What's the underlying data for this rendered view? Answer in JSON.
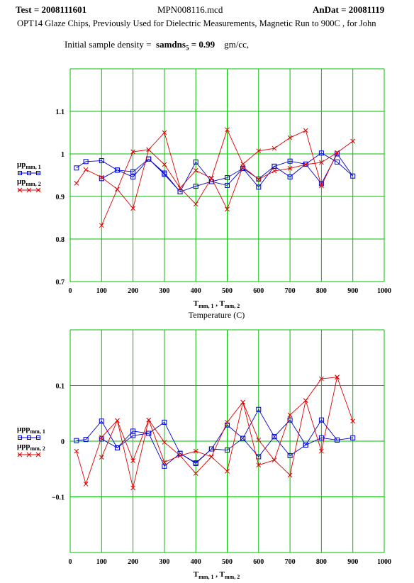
{
  "header": {
    "test": "Test = 2008111601",
    "file": "MPN008116.mcd",
    "andat": "AnDat = 20081119",
    "description": "OPT14 Glaze Chips, Previously Used for Dielectric Measurements, Magnetic Run to 900C , for John",
    "density_label": "Initial sample density =",
    "density_var": "samdns",
    "density_sub": "5",
    "density_value": "= 0.99",
    "density_unit": "gm/cc,"
  },
  "colors": {
    "grid": "#00c000",
    "series1": "#0000cc",
    "series2": "#dd0000"
  },
  "chart_data": [
    {
      "type": "line",
      "xlim": [
        0,
        1000
      ],
      "ylim": [
        0.7,
        1.2
      ],
      "xticks": [
        0,
        100,
        200,
        300,
        400,
        500,
        600,
        700,
        800,
        900,
        1000
      ],
      "yticks": [
        0.7,
        0.8,
        0.9,
        1,
        1.1
      ],
      "ytick_labels": [
        "0.7",
        "0.8",
        "0.9",
        "1",
        "1.1"
      ],
      "grid": true,
      "xlabel": "T",
      "xlabel_sub": "mm, 1",
      "xlabel_mid": " , T",
      "xlabel_sub2": "mm, 2",
      "xtitle": "Temperature (C)",
      "series": [
        {
          "name": "μp",
          "name_sub": "mm, 1",
          "marker": "square",
          "x": [
            20,
            50,
            100,
            150,
            200,
            250,
            300,
            350,
            400,
            450,
            500,
            550,
            600,
            650,
            700,
            750,
            800,
            850,
            900,
            850,
            800,
            750,
            700,
            650,
            600,
            550,
            500,
            450,
            400,
            350,
            300,
            250,
            200,
            150,
            100
          ],
          "y": [
            0.967,
            0.982,
            0.984,
            0.962,
            0.958,
            0.988,
            0.952,
            0.911,
            0.981,
            0.935,
            0.944,
            0.966,
            0.922,
            0.971,
            0.946,
            0.976,
            1.002,
            0.981,
            0.948,
            1.0,
            0.93,
            0.976,
            0.983,
            0.971,
            0.941,
            0.966,
            0.926,
            0.935,
            0.924,
            0.911,
            0.955,
            0.988,
            0.946,
            0.962,
            0.942
          ]
        },
        {
          "name": "μp",
          "name_sub": "mm, 2",
          "marker": "x",
          "x": [
            20,
            50,
            100,
            150,
            200,
            250,
            300,
            350,
            400,
            450,
            500,
            550,
            600,
            650,
            700,
            750,
            800,
            850,
            900,
            850,
            800,
            750,
            700,
            650,
            600,
            550,
            500,
            450,
            400,
            350,
            300,
            250,
            200,
            150,
            100
          ],
          "y": [
            0.931,
            0.963,
            0.945,
            0.917,
            1.005,
            1.01,
            0.975,
            0.92,
            0.961,
            0.943,
            1.057,
            0.976,
            1.007,
            1.013,
            1.038,
            1.055,
            0.925,
            1.003,
            1.03,
            1.003,
            0.98,
            0.975,
            0.966,
            0.96,
            0.94,
            0.97,
            0.87,
            0.943,
            0.882,
            0.92,
            1.05,
            1.01,
            0.872,
            0.917,
            0.832
          ]
        }
      ]
    },
    {
      "type": "line",
      "xlim": [
        0,
        1000
      ],
      "ylim": [
        -0.2,
        0.2
      ],
      "xticks": [
        0,
        100,
        200,
        300,
        400,
        500,
        600,
        700,
        800,
        900,
        1000
      ],
      "yticks": [
        -0.2,
        -0.1,
        0,
        0.1,
        0.2
      ],
      "ytick_labels": [
        "",
        "−0.1",
        "0",
        "0.1",
        ""
      ],
      "grid": true,
      "xlabel": "T",
      "xlabel_sub": "mm, 1",
      "xlabel_mid": " , T",
      "xlabel_sub2": "mm, 2",
      "xtitle": "",
      "series": [
        {
          "name": "μpp",
          "name_sub": "mm, 1",
          "marker": "square",
          "x": [
            20,
            50,
            100,
            150,
            200,
            250,
            300,
            350,
            400,
            450,
            500,
            550,
            600,
            650,
            700,
            750,
            800,
            850,
            900,
            850,
            800,
            750,
            700,
            650,
            600,
            550,
            500,
            450,
            400,
            350,
            300,
            250,
            200,
            150,
            100
          ],
          "y": [
            0.001,
            0.003,
            0.036,
            -0.012,
            0.01,
            0.014,
            0.034,
            -0.022,
            -0.04,
            -0.014,
            0.029,
            0.005,
            0.057,
            0.008,
            0.038,
            -0.007,
            0.038,
            0.002,
            0.006,
            0.002,
            0.006,
            -0.007,
            -0.026,
            0.008,
            -0.028,
            0.005,
            -0.016,
            -0.014,
            -0.039,
            -0.022,
            -0.045,
            0.014,
            0.018,
            -0.012,
            0.004
          ]
        },
        {
          "name": "μpp",
          "name_sub": "mm, 2",
          "marker": "x",
          "x": [
            20,
            50,
            100,
            150,
            200,
            250,
            300,
            350,
            400,
            450,
            500,
            550,
            600,
            650,
            700,
            750,
            800,
            850,
            900,
            850,
            800,
            750,
            700,
            650,
            600,
            550,
            500,
            450,
            400,
            350,
            300,
            250,
            200,
            150,
            100
          ],
          "y": [
            -0.018,
            -0.077,
            0.007,
            0.037,
            -0.084,
            0.038,
            -0.002,
            -0.026,
            -0.058,
            -0.028,
            0.034,
            0.07,
            0.002,
            -0.034,
            0.047,
            0.073,
            -0.018,
            0.115,
            0.036,
            0.115,
            0.112,
            0.073,
            -0.061,
            -0.034,
            -0.043,
            0.07,
            -0.054,
            -0.028,
            -0.018,
            -0.026,
            -0.038,
            0.038,
            -0.035,
            0.037,
            -0.029
          ]
        }
      ]
    }
  ]
}
